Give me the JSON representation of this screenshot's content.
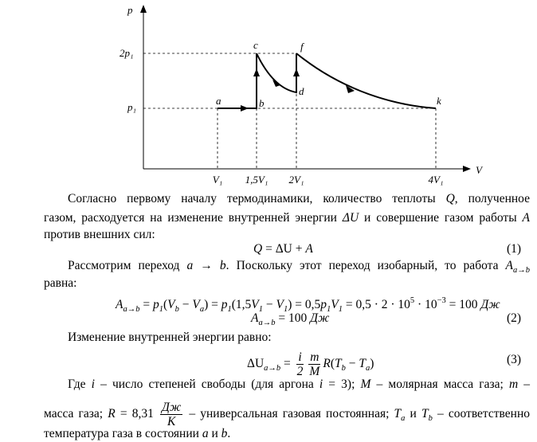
{
  "diagram": {
    "axis_y": "p",
    "axis_x": "V",
    "y_labels": [
      "2p₁",
      "p₁"
    ],
    "x_labels": [
      "V₁",
      "1,5V₁",
      "2V₁",
      "4V₁"
    ],
    "points": [
      "a",
      "b",
      "c",
      "d",
      "f",
      "k"
    ]
  },
  "text": {
    "lines": [
      {
        "items": [
          "Согласно первому началу термодинамики, количество теплоты ",
          {
            "i": "Q"
          },
          ", полученное"
        ]
      },
      {
        "items": [
          "газом, расходуется на изменение внутренней энергии ",
          {
            "i": "ΔU"
          },
          " и совершение газом работы ",
          {
            "i": "A"
          }
        ]
      },
      {
        "items": [
          "против внешних сил:"
        ]
      },
      {
        "items": [
          {
            "i": "Q"
          },
          " = ΔU + ",
          {
            "i": "A"
          }
        ],
        "number": "(1)"
      },
      {
        "items": [
          "Рассмотрим переход ",
          {
            "i": "a"
          },
          " → ",
          {
            "i": "b"
          },
          ". Поскольку этот переход изобарный, то работа ",
          {
            "i": "A"
          },
          {
            "sub": "a→b"
          }
        ]
      },
      {
        "items": [
          "равна:"
        ]
      },
      {
        "items": [
          {
            "i": "A"
          },
          {
            "sub": "a→b"
          },
          " = ",
          {
            "i": "p"
          },
          {
            "sub": "1"
          },
          "(",
          {
            "i": "V"
          },
          {
            "sub": "b"
          },
          " − ",
          {
            "i": "V"
          },
          {
            "sub": "a"
          },
          ") = ",
          {
            "i": "p"
          },
          {
            "sub": "1"
          },
          "(1,5",
          {
            "i": "V"
          },
          {
            "sub": "1"
          },
          " − ",
          {
            "i": "V"
          },
          {
            "sub": "1"
          },
          ") = 0,5",
          {
            "i": "p"
          },
          {
            "sub": "1"
          },
          {
            "i": "V"
          },
          {
            "sub": "1"
          },
          " = 0,5 · 2 · 10",
          {
            "sup": "5"
          },
          " · 10",
          {
            "sup": "−3"
          },
          " = 100 ",
          {
            "i": "Дж"
          }
        ]
      },
      {
        "items": [
          {
            "i": "A"
          },
          {
            "sub": "a→b"
          },
          " = 100 ",
          {
            "i": "Дж"
          }
        ],
        "number": "(2)"
      },
      {
        "items": [
          "Изменение внутренней энергии равно:"
        ]
      },
      {
        "items": [
          "ΔU",
          {
            "sub": "a→b"
          },
          " = ",
          {
            "frac": [
              "i",
              "2"
            ]
          },
          {
            "frac": [
              "m",
              "M"
            ]
          },
          {
            "i": "R"
          },
          "(",
          {
            "i": "T"
          },
          {
            "sub": "b"
          },
          " − ",
          {
            "i": "T"
          },
          {
            "sub": "a"
          },
          ")"
        ],
        "number": "(3)"
      },
      {
        "items": [
          "Где ",
          {
            "i": "i"
          },
          " – число степеней свободы (для аргона ",
          {
            "i": "i"
          },
          " = 3); ",
          {
            "i": "M"
          },
          " – молярная масса газа; ",
          {
            "i": "m"
          },
          " –"
        ]
      },
      {
        "items": [
          "масса газа; ",
          {
            "i": "R"
          },
          " = 8,31 ",
          {
            "frac": [
              "Дж",
              "К"
            ]
          },
          " – универсальная газовая постоянная; ",
          {
            "i": "T"
          },
          {
            "sub": "a"
          },
          " и ",
          {
            "i": "T"
          },
          {
            "sub": "b"
          },
          " – соответственно"
        ]
      },
      {
        "items": [
          "температура газа в состоянии ",
          {
            "i": "a"
          },
          " и ",
          {
            "i": "b"
          },
          "."
        ]
      }
    ]
  }
}
